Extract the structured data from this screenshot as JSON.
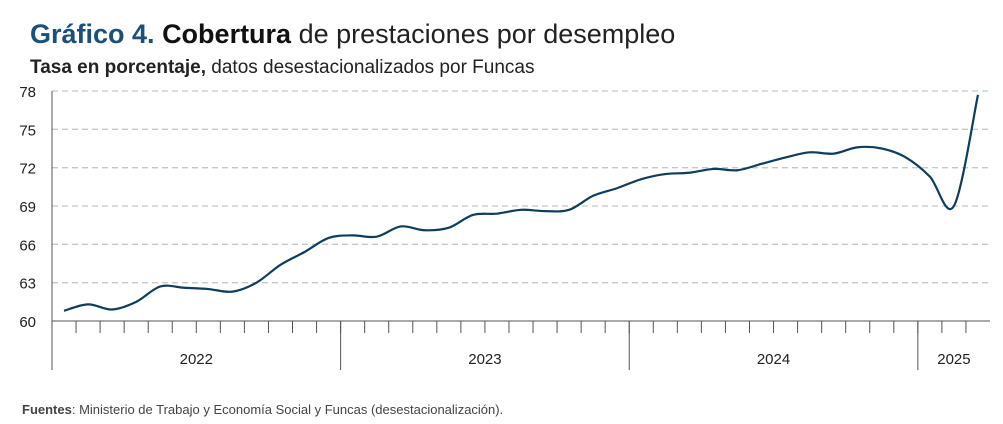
{
  "chart_data": {
    "type": "line",
    "title_parts": [
      "Gráfico 4.",
      "Cobertura",
      "de prestaciones por desempleo"
    ],
    "subtitle_parts": [
      "Tasa en porcentaje,",
      "datos desestacionalizados por Funcas"
    ],
    "source_parts": [
      "Fuentes",
      ": Ministerio de Trabajo y Economía Social y Funcas (desestacionalización)."
    ],
    "categories": [
      null,
      null,
      null,
      null,
      null,
      null,
      null,
      null,
      null,
      null,
      null,
      null,
      null,
      null,
      null,
      null,
      null,
      null,
      null,
      null,
      null,
      null,
      null,
      null,
      null,
      null,
      null,
      null,
      null,
      null,
      null,
      null,
      null,
      null,
      null,
      null,
      null,
      null,
      null
    ],
    "x_groups": [
      {
        "label": "2022",
        "months": 12
      },
      {
        "label": "2023",
        "months": 12
      },
      {
        "label": "2024",
        "months": 12
      },
      {
        "label": "2025",
        "months": 3
      }
    ],
    "series": [
      {
        "name": "Cobertura",
        "color": "#0f3d5e",
        "values": [
          60.8,
          61.3,
          60.9,
          61.5,
          62.7,
          62.6,
          62.5,
          62.3,
          63.0,
          64.4,
          65.4,
          66.5,
          66.7,
          66.6,
          67.4,
          67.1,
          67.3,
          68.3,
          68.4,
          68.7,
          68.6,
          68.7,
          69.8,
          70.4,
          71.1,
          71.5,
          71.6,
          71.9,
          71.8,
          72.3,
          72.8,
          73.2,
          73.1,
          73.6,
          73.5,
          72.8,
          71.3,
          69.0,
          77.7
        ]
      }
    ],
    "ylim": [
      60,
      78
    ],
    "yticks": [
      60,
      63,
      66,
      69,
      72,
      75,
      78
    ],
    "grid": true
  }
}
